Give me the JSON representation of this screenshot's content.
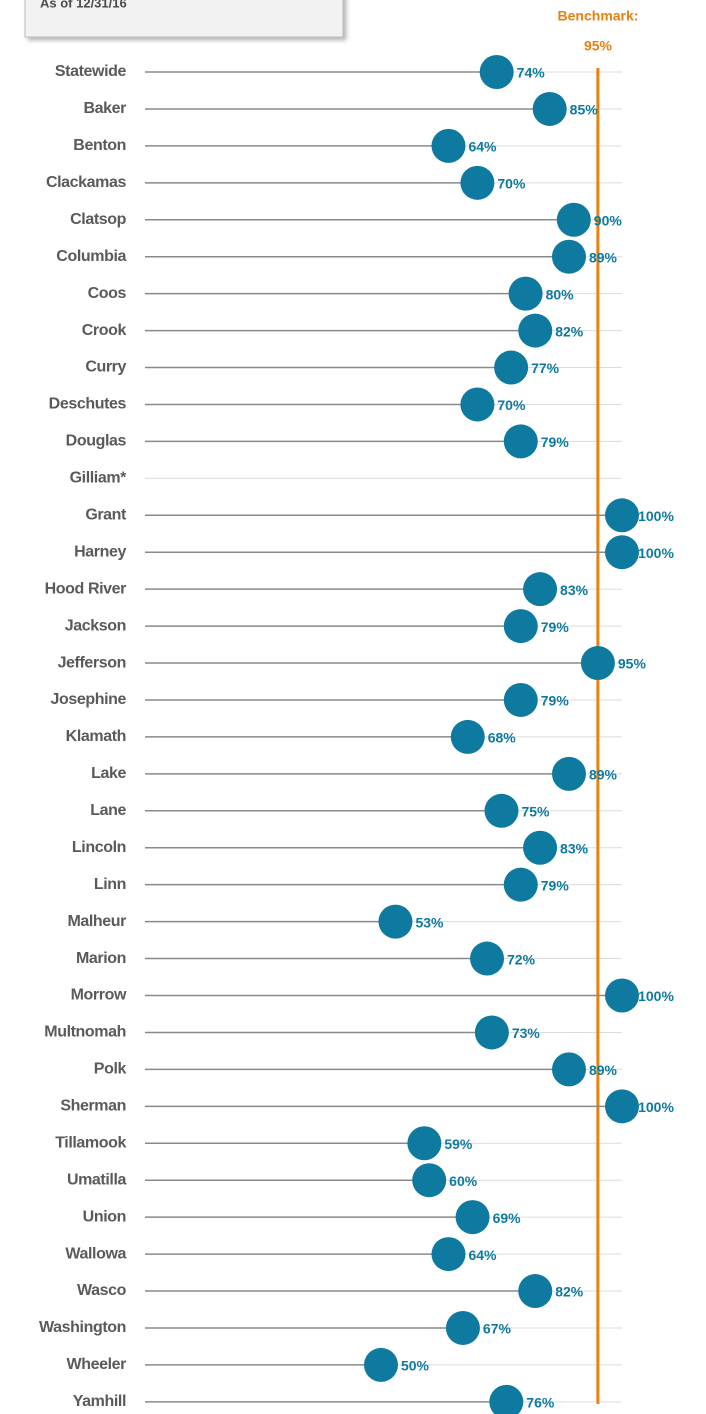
{
  "chart_data": {
    "type": "lollipop",
    "subtitle": "As of 12/31/16",
    "categories": [
      "Statewide",
      "Baker",
      "Benton",
      "Clackamas",
      "Clatsop",
      "Columbia",
      "Coos",
      "Crook",
      "Curry",
      "Deschutes",
      "Douglas",
      "Gilliam*",
      "Grant",
      "Harney",
      "Hood River",
      "Jackson",
      "Jefferson",
      "Josephine",
      "Klamath",
      "Lake",
      "Lane",
      "Lincoln",
      "Linn",
      "Malheur",
      "Marion",
      "Morrow",
      "Multnomah",
      "Polk",
      "Sherman",
      "Tillamook",
      "Umatilla",
      "Union",
      "Wallowa",
      "Wasco",
      "Washington",
      "Wheeler",
      "Yamhill"
    ],
    "values": [
      74,
      85,
      64,
      70,
      90,
      89,
      80,
      82,
      77,
      70,
      79,
      null,
      100,
      100,
      83,
      79,
      95,
      79,
      68,
      89,
      75,
      83,
      79,
      53,
      72,
      100,
      73,
      89,
      100,
      59,
      60,
      69,
      64,
      82,
      67,
      50,
      76
    ],
    "value_labels": [
      "74%",
      "85%",
      "64%",
      "70%",
      "90%",
      "89%",
      "80%",
      "82%",
      "77%",
      "70%",
      "79%",
      null,
      "100%",
      "100%",
      "83%",
      "79%",
      "95%",
      "79%",
      "68%",
      "89%",
      "75%",
      "83%",
      "79%",
      "53%",
      "72%",
      "100%",
      "73%",
      "89%",
      "100%",
      "59%",
      "60%",
      "69%",
      "64%",
      "82%",
      "67%",
      "50%",
      "76%"
    ],
    "color": "#0e7aa0",
    "xlim": [
      0,
      100
    ],
    "benchmark": {
      "label": "Benchmark:",
      "value": 95,
      "value_label": "95%",
      "color": "#e8800e"
    }
  }
}
